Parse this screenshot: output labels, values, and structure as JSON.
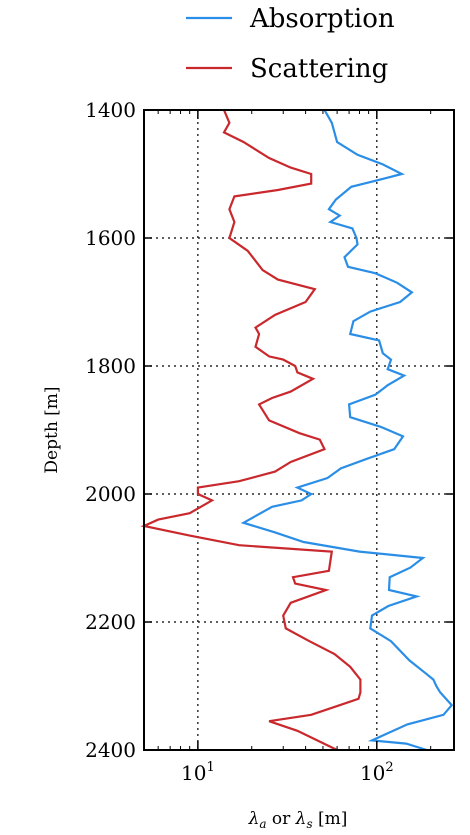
{
  "chart_data": {
    "type": "line",
    "xlabel_parts": {
      "lambda": "λ",
      "sub_a": "a",
      "or": " or ",
      "sub_s": "s",
      "unit": " [m]"
    },
    "ylabel": "Depth [m]",
    "xscale": "log",
    "xlim": [
      5,
      270
    ],
    "ylim": [
      2400,
      1400
    ],
    "y_inverted": true,
    "grid": true,
    "legend_position": "top",
    "x_ticks": [
      {
        "value": 10,
        "base": "10",
        "exp": "1"
      },
      {
        "value": 100,
        "base": "10",
        "exp": "2"
      }
    ],
    "y_ticks": [
      {
        "value": 1400,
        "label": "1400"
      },
      {
        "value": 1600,
        "label": "1600"
      },
      {
        "value": 1800,
        "label": "1800"
      },
      {
        "value": 2000,
        "label": "2000"
      },
      {
        "value": 2200,
        "label": "2200"
      },
      {
        "value": 2400,
        "label": "2400"
      }
    ],
    "series": [
      {
        "name": "Absorption",
        "color": "#2b8ee6",
        "points": [
          [
            51,
            1400
          ],
          [
            56,
            1420
          ],
          [
            60,
            1450
          ],
          [
            78,
            1470
          ],
          [
            108,
            1485
          ],
          [
            138,
            1500
          ],
          [
            100,
            1510
          ],
          [
            72,
            1520
          ],
          [
            59,
            1540
          ],
          [
            54,
            1555
          ],
          [
            62,
            1565
          ],
          [
            55,
            1575
          ],
          [
            73,
            1585
          ],
          [
            77,
            1600
          ],
          [
            78,
            1610
          ],
          [
            66,
            1630
          ],
          [
            69,
            1645
          ],
          [
            98,
            1655
          ],
          [
            130,
            1670
          ],
          [
            157,
            1685
          ],
          [
            135,
            1700
          ],
          [
            92,
            1715
          ],
          [
            74,
            1730
          ],
          [
            71,
            1750
          ],
          [
            103,
            1760
          ],
          [
            108,
            1780
          ],
          [
            120,
            1790
          ],
          [
            115,
            1805
          ],
          [
            142,
            1815
          ],
          [
            115,
            1830
          ],
          [
            98,
            1845
          ],
          [
            70,
            1860
          ],
          [
            71,
            1880
          ],
          [
            105,
            1895
          ],
          [
            140,
            1910
          ],
          [
            125,
            1930
          ],
          [
            88,
            1945
          ],
          [
            63,
            1960
          ],
          [
            53,
            1975
          ],
          [
            36,
            1990
          ],
          [
            43,
            2000
          ],
          [
            38,
            2010
          ],
          [
            26,
            2020
          ],
          [
            18,
            2045
          ],
          [
            27,
            2060
          ],
          [
            39,
            2075
          ],
          [
            80,
            2090
          ],
          [
            181,
            2100
          ],
          [
            154,
            2115
          ],
          [
            118,
            2130
          ],
          [
            117,
            2150
          ],
          [
            167,
            2160
          ],
          [
            116,
            2175
          ],
          [
            94,
            2190
          ],
          [
            92,
            2210
          ],
          [
            120,
            2230
          ],
          [
            152,
            2260
          ],
          [
            187,
            2280
          ],
          [
            207,
            2290
          ],
          [
            215,
            2300
          ],
          [
            226,
            2310
          ],
          [
            262,
            2330
          ],
          [
            236,
            2345
          ],
          [
            148,
            2360
          ],
          [
            94,
            2385
          ],
          [
            146,
            2390
          ],
          [
            190,
            2400
          ]
        ]
      },
      {
        "name": "Scattering",
        "color": "#c9282d",
        "points": [
          [
            14,
            1400
          ],
          [
            15,
            1420
          ],
          [
            14,
            1435
          ],
          [
            18,
            1450
          ],
          [
            25,
            1475
          ],
          [
            33,
            1490
          ],
          [
            43,
            1500
          ],
          [
            43,
            1515
          ],
          [
            28,
            1525
          ],
          [
            16,
            1535
          ],
          [
            15,
            1555
          ],
          [
            16,
            1575
          ],
          [
            15,
            1600
          ],
          [
            19,
            1620
          ],
          [
            23,
            1650
          ],
          [
            28,
            1665
          ],
          [
            45,
            1680
          ],
          [
            40,
            1700
          ],
          [
            27,
            1720
          ],
          [
            21,
            1740
          ],
          [
            22,
            1750
          ],
          [
            21,
            1770
          ],
          [
            25,
            1785
          ],
          [
            30,
            1790
          ],
          [
            35,
            1800
          ],
          [
            36,
            1810
          ],
          [
            44,
            1820
          ],
          [
            33,
            1840
          ],
          [
            26,
            1850
          ],
          [
            22,
            1860
          ],
          [
            25,
            1885
          ],
          [
            37,
            1905
          ],
          [
            48,
            1915
          ],
          [
            51,
            1930
          ],
          [
            33,
            1950
          ],
          [
            27,
            1965
          ],
          [
            17,
            1980
          ],
          [
            10,
            1990
          ],
          [
            10,
            2000
          ],
          [
            12,
            2010
          ],
          [
            9,
            2030
          ],
          [
            6,
            2040
          ],
          [
            5,
            2050
          ],
          [
            9,
            2065
          ],
          [
            17,
            2080
          ],
          [
            56,
            2090
          ],
          [
            54,
            2120
          ],
          [
            34,
            2130
          ],
          [
            35,
            2140
          ],
          [
            52,
            2150
          ],
          [
            33,
            2170
          ],
          [
            30,
            2190
          ],
          [
            31,
            2210
          ],
          [
            42,
            2230
          ],
          [
            58,
            2250
          ],
          [
            71,
            2270
          ],
          [
            81,
            2290
          ],
          [
            81,
            2310
          ],
          [
            79,
            2320
          ],
          [
            62,
            2330
          ],
          [
            43,
            2345
          ],
          [
            25,
            2355
          ],
          [
            36,
            2370
          ],
          [
            60,
            2400
          ]
        ]
      }
    ]
  }
}
